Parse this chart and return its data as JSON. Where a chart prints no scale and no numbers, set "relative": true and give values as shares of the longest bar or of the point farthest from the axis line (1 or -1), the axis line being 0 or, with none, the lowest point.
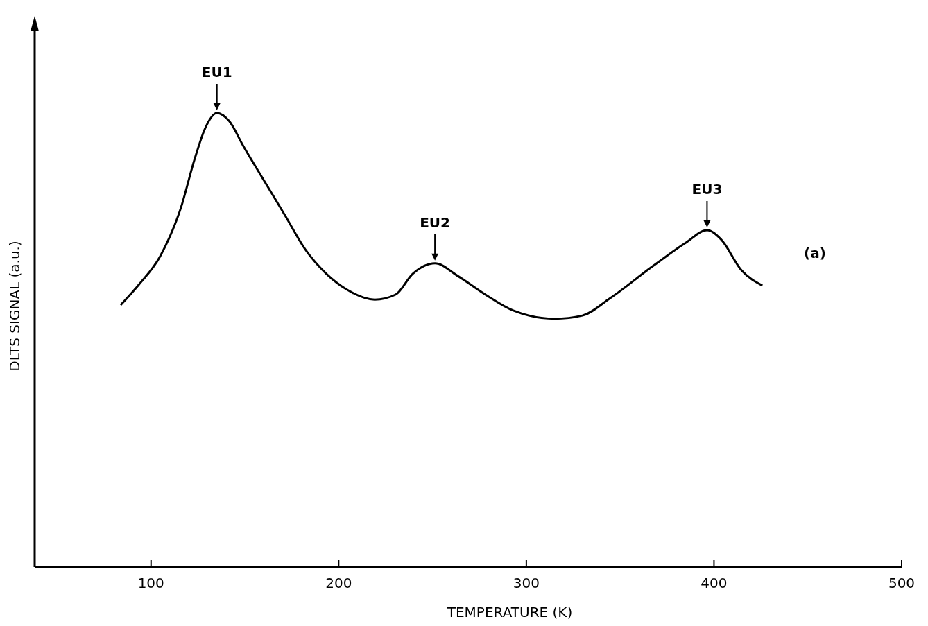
{
  "chart_data": {
    "type": "line",
    "xlabel": "TEMPERATURE     (K)",
    "ylabel": "DLTS  SIGNAL  (a.u.)",
    "relative": true,
    "x": [
      83.8,
      93.7,
      104.8,
      115.9,
      123.2,
      128.8,
      135.1,
      141.7,
      149.1,
      160.1,
      171.2,
      182.3,
      193.4,
      204.4,
      219.2,
      230.3,
      239.5,
      251.3,
      263.5,
      278.2,
      293.0,
      315.1,
      329.9,
      344.6,
      366.8,
      385.2,
      396.3,
      403.7,
      414.8,
      425.8
    ],
    "series": [
      {
        "color": "#000000",
        "values": [
          0.577,
          0.623,
          0.684,
          0.791,
          0.898,
          0.966,
          1,
          0.982,
          0.928,
          0.852,
          0.776,
          0.699,
          0.646,
          0.611,
          0.589,
          0.6,
          0.646,
          0.669,
          0.641,
          0.6,
          0.565,
          0.547,
          0.554,
          0.592,
          0.661,
          0.715,
          0.742,
          0.722,
          0.653,
          0.62
        ]
      }
    ],
    "xlim": [
      38,
      500
    ],
    "xticks": [
      100,
      200,
      300,
      400,
      500
    ],
    "marker": "none",
    "line_style": "solid",
    "grid": false,
    "annotations": [
      {
        "text": "EU1",
        "x": 135.1,
        "y": 1
      },
      {
        "text": "EU2",
        "x": 251.3,
        "y": 0.669
      },
      {
        "text": "EU3",
        "x": 396.3,
        "y": 0.742
      },
      "(a)"
    ]
  }
}
